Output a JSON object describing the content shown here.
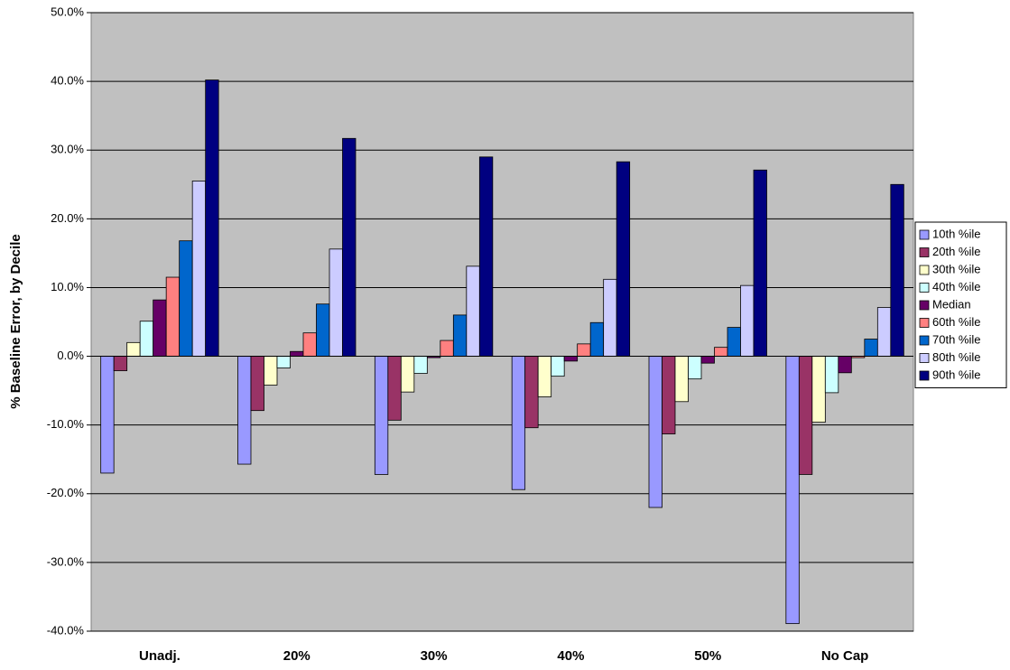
{
  "chart_data": {
    "type": "bar",
    "y_label": "% Baseline Error, by Decile",
    "categories": [
      "Unadj.",
      "20%",
      "30%",
      "40%",
      "50%",
      "No Cap"
    ],
    "series": [
      {
        "name": "10th %ile",
        "color": "#9999ff",
        "values": [
          -17.0,
          -15.7,
          -17.2,
          -19.4,
          -22.0,
          -38.9
        ]
      },
      {
        "name": "20th %ile",
        "color": "#993366",
        "values": [
          -2.1,
          -7.9,
          -9.3,
          -10.4,
          -11.3,
          -17.2
        ]
      },
      {
        "name": "30th %ile",
        "color": "#ffffcc",
        "values": [
          2.0,
          -4.2,
          -5.2,
          -5.9,
          -6.6,
          -9.6
        ]
      },
      {
        "name": "40th %ile",
        "color": "#ccffff",
        "values": [
          5.1,
          -1.7,
          -2.5,
          -2.9,
          -3.3,
          -5.3
        ]
      },
      {
        "name": "Median",
        "color": "#660066",
        "values": [
          8.2,
          0.7,
          -0.2,
          -0.7,
          -1.0,
          -2.4
        ]
      },
      {
        "name": "60th %ile",
        "color": "#ff8080",
        "values": [
          11.5,
          3.4,
          2.3,
          1.8,
          1.3,
          -0.2
        ]
      },
      {
        "name": "70th %ile",
        "color": "#0066cc",
        "values": [
          16.8,
          7.6,
          6.0,
          4.9,
          4.2,
          2.5
        ]
      },
      {
        "name": "80th %ile",
        "color": "#ccccff",
        "values": [
          25.5,
          15.6,
          13.1,
          11.2,
          10.3,
          7.1
        ]
      },
      {
        "name": "90th %ile",
        "color": "#000080",
        "values": [
          40.2,
          31.7,
          29.0,
          28.3,
          27.1,
          25.0
        ]
      }
    ],
    "ylim": [
      -40,
      50
    ],
    "yticks": [
      {
        "value": -40,
        "label": "-40.0%"
      },
      {
        "value": -30,
        "label": "-30.0%"
      },
      {
        "value": -20,
        "label": "-20.0%"
      },
      {
        "value": -10,
        "label": "-10.0%"
      },
      {
        "value": 0,
        "label": "0.0%"
      },
      {
        "value": 10,
        "label": "10.0%"
      },
      {
        "value": 20,
        "label": "20.0%"
      },
      {
        "value": 30,
        "label": "30.0%"
      },
      {
        "value": 40,
        "label": "40.0%"
      },
      {
        "value": 50,
        "label": "50.0%"
      }
    ],
    "grid": true,
    "plot_background": "#c0c0c0",
    "legend": "right"
  }
}
